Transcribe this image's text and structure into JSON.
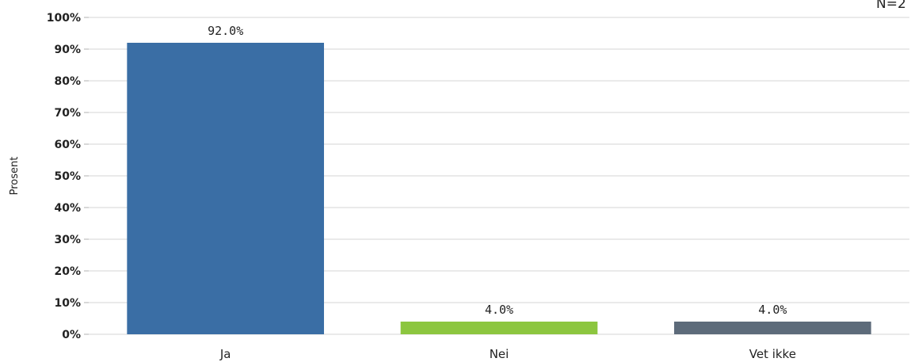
{
  "chart_data": {
    "type": "bar",
    "categories": [
      "Ja",
      "Nei",
      "Vet ikke"
    ],
    "values": [
      92.0,
      4.0,
      4.0
    ],
    "value_labels": [
      "92.0%",
      "4.0%",
      "4.0%"
    ],
    "colors": [
      "#3a6ea5",
      "#8cc63f",
      "#5d6b7a"
    ],
    "ylabel": "Prosent",
    "ylim": [
      0,
      100
    ],
    "yticks": [
      "0%",
      "10%",
      "20%",
      "30%",
      "40%",
      "50%",
      "60%",
      "70%",
      "80%",
      "90%",
      "100%"
    ],
    "ytick_values": [
      0,
      10,
      20,
      30,
      40,
      50,
      60,
      70,
      80,
      90,
      100
    ],
    "grid": true,
    "note": "N=2"
  }
}
